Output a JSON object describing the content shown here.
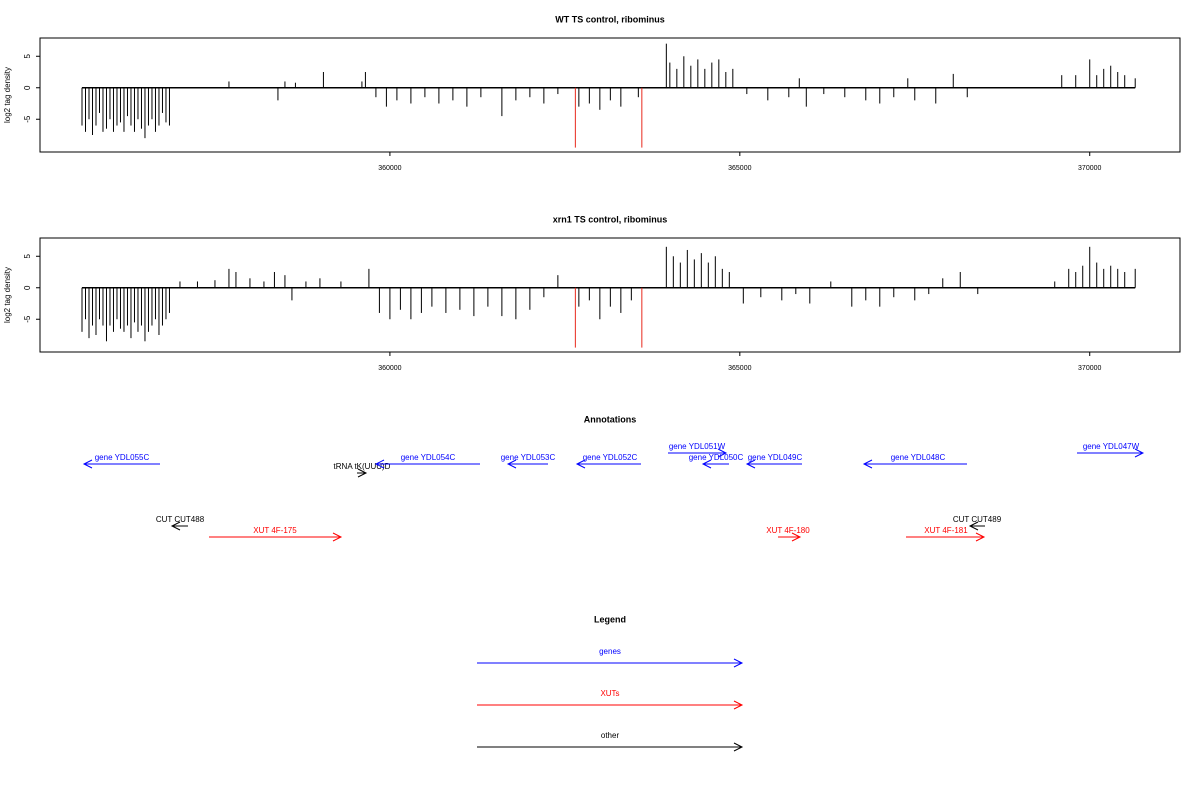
{
  "chart_data": [
    {
      "type": "bar",
      "title": "WT TS control, ribominus",
      "ylabel": "log2 tag density",
      "xlim": [
        355000,
        371290
      ],
      "ylim": [
        -10.2,
        7.9
      ],
      "xticks": [
        360000,
        365000,
        370000
      ],
      "yticks": [
        -5,
        0,
        5
      ],
      "series": [
        {
          "color": "#000000",
          "x": [
            355600,
            355650,
            355700,
            355750,
            355800,
            355850,
            355900,
            355950,
            356000,
            356050,
            356100,
            356150,
            356200,
            356250,
            356300,
            356350,
            356400,
            356450,
            356500,
            356550,
            356600,
            356650,
            356700,
            356750,
            356800,
            356850,
            357700,
            358400,
            358500,
            358650,
            359050,
            359600,
            359650,
            359800,
            359950,
            360100,
            360300,
            360500,
            360700,
            360900,
            361100,
            361300,
            361600,
            361800,
            362000,
            362200,
            362400,
            362700,
            362850,
            363000,
            363150,
            363300,
            363550,
            363950,
            364000,
            364100,
            364200,
            364300,
            364400,
            364500,
            364600,
            364700,
            364800,
            364900,
            365100,
            365400,
            365700,
            365850,
            365950,
            366200,
            366500,
            366800,
            367000,
            367200,
            367400,
            367500,
            367800,
            368050,
            368250,
            369600,
            369800,
            370000,
            370100,
            370200,
            370300,
            370400,
            370500,
            370650
          ],
          "values": [
            -6,
            -7,
            -5,
            -7.5,
            -6,
            -4,
            -7,
            -6.5,
            -5,
            -7,
            -6,
            -5.5,
            -7,
            -4.5,
            -6,
            -7,
            -5,
            -6.5,
            -8,
            -6,
            -5,
            -7,
            -6,
            -4,
            -5.5,
            -6,
            1,
            -2,
            1,
            0.8,
            2.5,
            1,
            2.5,
            -1.5,
            -3,
            -2,
            -2.5,
            -1.5,
            -2.5,
            -2,
            -3,
            -1.5,
            -4.5,
            -2,
            -1.5,
            -2.5,
            -1,
            -3,
            -2.5,
            -3.5,
            -2,
            -3,
            -1.5,
            7,
            4,
            3,
            5,
            3.5,
            4.5,
            3,
            4,
            4.5,
            2.5,
            3,
            -1,
            -2,
            -1.5,
            1.5,
            -3,
            -1,
            -1.5,
            -2,
            -2.5,
            -1.5,
            1.5,
            -2,
            -2.5,
            2.2,
            -1.5,
            2,
            2,
            4.5,
            2,
            3,
            3.5,
            2.5,
            2,
            1.5
          ]
        },
        {
          "color": "#e8291c",
          "x": [
            362650,
            363600
          ],
          "values": [
            -9.5,
            -9.5
          ]
        }
      ]
    },
    {
      "type": "bar",
      "title": "xrn1 TS control, ribominus",
      "ylabel": "log2 tag density",
      "xlim": [
        355000,
        371290
      ],
      "ylim": [
        -10.2,
        7.9
      ],
      "xticks": [
        360000,
        365000,
        370000
      ],
      "yticks": [
        -5,
        0,
        5
      ],
      "series": [
        {
          "color": "#000000",
          "x": [
            355600,
            355650,
            355700,
            355750,
            355800,
            355850,
            355900,
            355950,
            356000,
            356050,
            356100,
            356150,
            356200,
            356250,
            356300,
            356350,
            356400,
            356450,
            356500,
            356550,
            356600,
            356650,
            356700,
            356750,
            356800,
            356850,
            357000,
            357250,
            357500,
            357700,
            357800,
            358000,
            358200,
            358350,
            358500,
            358600,
            358800,
            359000,
            359300,
            359700,
            359850,
            360000,
            360150,
            360300,
            360450,
            360600,
            360800,
            361000,
            361200,
            361400,
            361600,
            361800,
            362000,
            362200,
            362400,
            362700,
            362850,
            363000,
            363150,
            363300,
            363450,
            363950,
            364050,
            364150,
            364250,
            364350,
            364450,
            364550,
            364650,
            364750,
            364850,
            365050,
            365300,
            365600,
            365800,
            366000,
            366300,
            366600,
            366800,
            367000,
            367200,
            367500,
            367700,
            367900,
            368150,
            368400,
            369500,
            369700,
            369800,
            369900,
            370000,
            370100,
            370200,
            370300,
            370400,
            370500,
            370650
          ],
          "values": [
            -7,
            -5,
            -8,
            -6,
            -7.5,
            -5,
            -6,
            -8.5,
            -6,
            -7,
            -5,
            -6.5,
            -7,
            -6,
            -8,
            -5.5,
            -7,
            -6,
            -8.5,
            -7,
            -6,
            -5,
            -7.5,
            -6,
            -5,
            -4,
            1,
            1,
            1.2,
            3,
            2.5,
            1.5,
            1,
            2.5,
            2,
            -2,
            1,
            1.5,
            1,
            3,
            -4,
            -5,
            -3.5,
            -5,
            -4,
            -3,
            -4,
            -3.5,
            -4.5,
            -3,
            -4.5,
            -5,
            -3.5,
            -1.5,
            2,
            -3,
            -2,
            -5,
            -3,
            -4,
            -2,
            6.5,
            5,
            4,
            6,
            4.5,
            5.5,
            4,
            5,
            3,
            2.5,
            -2.5,
            -1.5,
            -2,
            -1,
            -2.5,
            1,
            -3,
            -2,
            -3,
            -1.5,
            -2,
            -1,
            1.5,
            2.5,
            -1,
            1,
            3,
            2.5,
            3.5,
            6.5,
            4,
            3,
            3.5,
            3,
            2.5,
            3
          ]
        },
        {
          "color": "#e8291c",
          "x": [
            362650,
            363600
          ],
          "values": [
            -9.5,
            -9.5
          ]
        }
      ]
    }
  ],
  "annotations": {
    "title": "Annotations",
    "items": [
      {
        "label": "gene YDL055C",
        "color": "#0000ff"
      },
      {
        "label": "tRNA tK(UUU)D",
        "color": "#000000"
      },
      {
        "label": "gene YDL054C",
        "color": "#0000ff"
      },
      {
        "label": "gene YDL053C",
        "color": "#0000ff"
      },
      {
        "label": "gene YDL052C",
        "color": "#0000ff"
      },
      {
        "label": "gene YDL051W",
        "color": "#0000ff"
      },
      {
        "label": "gene YDL050C",
        "color": "#0000ff"
      },
      {
        "label": "gene YDL049C",
        "color": "#0000ff"
      },
      {
        "label": "gene YDL048C",
        "color": "#0000ff"
      },
      {
        "label": "gene YDL047W",
        "color": "#0000ff"
      },
      {
        "label": "CUT CUT488",
        "color": "#000000"
      },
      {
        "label": "XUT 4F-175",
        "color": "#ff0000"
      },
      {
        "label": "XUT 4F-180",
        "color": "#ff0000"
      },
      {
        "label": "XUT 4F-181",
        "color": "#ff0000"
      },
      {
        "label": "CUT CUT489",
        "color": "#000000"
      }
    ]
  },
  "legend": {
    "title": "Legend",
    "items": [
      {
        "label": "genes",
        "color": "#0000ff"
      },
      {
        "label": "XUTs",
        "color": "#ff0000"
      },
      {
        "label": "other",
        "color": "#000000"
      }
    ]
  }
}
